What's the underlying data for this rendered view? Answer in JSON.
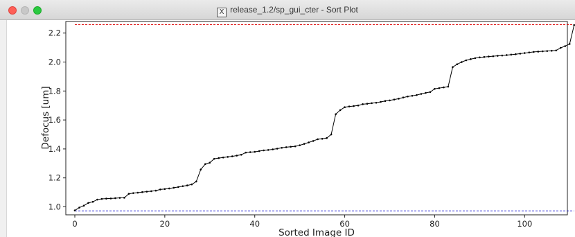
{
  "window": {
    "title": "release_1.2/sp_gui_cter - Sort Plot",
    "title_icon": "x11-icon",
    "traffic_lights": {
      "close": "#fe5f57",
      "minimize": "#c8c8c8",
      "maximize": "#2ac940"
    }
  },
  "chart_data": {
    "type": "line",
    "title": "",
    "xlabel": "Sorted Image ID",
    "ylabel": "Defocus [um]",
    "xlim": [
      -2,
      109.5
    ],
    "ylim": [
      0.945,
      2.28
    ],
    "xticks": [
      0,
      20,
      40,
      60,
      80,
      100
    ],
    "yticks": [
      1.0,
      1.2,
      1.4,
      1.6,
      1.8,
      2.0,
      2.2
    ],
    "ytick_labels": [
      "1.0",
      "1.2",
      "1.4",
      "1.6",
      "1.8",
      "2.0",
      "2.2"
    ],
    "grid": false,
    "series": [
      {
        "color": "#000000",
        "marker": "dot",
        "values": [
          0.975,
          0.995,
          1.008,
          1.027,
          1.035,
          1.05,
          1.055,
          1.057,
          1.058,
          1.06,
          1.062,
          1.063,
          1.09,
          1.095,
          1.098,
          1.102,
          1.105,
          1.108,
          1.112,
          1.12,
          1.123,
          1.127,
          1.132,
          1.137,
          1.143,
          1.148,
          1.155,
          1.175,
          1.258,
          1.295,
          1.305,
          1.332,
          1.337,
          1.341,
          1.345,
          1.349,
          1.354,
          1.36,
          1.375,
          1.378,
          1.38,
          1.385,
          1.39,
          1.393,
          1.397,
          1.402,
          1.408,
          1.412,
          1.415,
          1.418,
          1.425,
          1.435,
          1.445,
          1.455,
          1.467,
          1.47,
          1.475,
          1.5,
          1.64,
          1.668,
          1.688,
          1.693,
          1.696,
          1.7,
          1.709,
          1.712,
          1.716,
          1.719,
          1.725,
          1.731,
          1.735,
          1.741,
          1.747,
          1.755,
          1.762,
          1.767,
          1.772,
          1.78,
          1.787,
          1.793,
          1.815,
          1.82,
          1.825,
          1.83,
          1.965,
          1.985,
          2.0,
          2.012,
          2.02,
          2.027,
          2.032,
          2.035,
          2.038,
          2.04,
          2.043,
          2.045,
          2.048,
          2.051,
          2.054,
          2.058,
          2.062,
          2.066,
          2.07,
          2.072,
          2.074,
          2.076,
          2.078,
          2.08,
          2.098,
          2.11,
          2.125,
          2.255
        ]
      }
    ],
    "reference_lines": [
      {
        "y": 2.258,
        "color": "#dd0000",
        "style": "dashed"
      },
      {
        "y": 0.972,
        "color": "#0000cc",
        "style": "dashed"
      }
    ]
  }
}
